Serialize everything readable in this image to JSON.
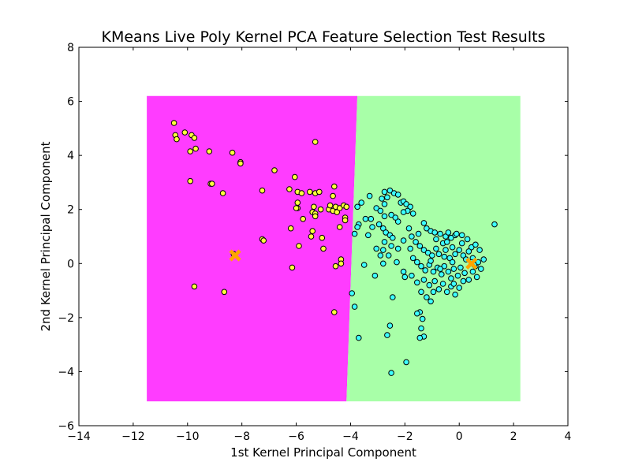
{
  "chart_data": {
    "type": "scatter",
    "title": "KMeans Live Poly Kernel PCA Feature Selection Test Results",
    "xlabel": "1st Kernel Principal Component",
    "ylabel": "2nd Kernel Principal Component",
    "xlim": [
      -14,
      4
    ],
    "ylim": [
      -6,
      8
    ],
    "xticks": [
      -14,
      -12,
      -10,
      -8,
      -6,
      -4,
      -2,
      0,
      2,
      4
    ],
    "yticks": [
      -6,
      -4,
      -2,
      0,
      2,
      4,
      6,
      8
    ],
    "xtick_labels": [
      "−14",
      "−12",
      "−10",
      "−8",
      "−6",
      "−4",
      "−2",
      "0",
      "2",
      "4"
    ],
    "ytick_labels": [
      "−6",
      "−4",
      "−2",
      "0",
      "2",
      "4",
      "6",
      "8"
    ],
    "grid": false,
    "legend": "none",
    "decision_regions": {
      "x_range": [
        -11.5,
        2.25
      ],
      "y_range": [
        -5.1,
        6.2
      ],
      "boundary": [
        [
          -3.75,
          6.2
        ],
        [
          -4.15,
          -5.1
        ]
      ],
      "left_color": "#ff3cff",
      "right_color": "#a8ffa8"
    },
    "series": [
      {
        "color": "#ffff3c",
        "points": [
          [
            -10.5,
            5.2
          ],
          [
            -10.45,
            4.75
          ],
          [
            -10.4,
            4.6
          ],
          [
            -10.1,
            4.85
          ],
          [
            -9.85,
            4.75
          ],
          [
            -9.75,
            4.65
          ],
          [
            -9.9,
            4.15
          ],
          [
            -9.7,
            4.25
          ],
          [
            -9.2,
            4.15
          ],
          [
            -8.35,
            4.1
          ],
          [
            -8.05,
            3.75
          ],
          [
            -8.05,
            3.7
          ],
          [
            -6.8,
            3.45
          ],
          [
            -9.9,
            3.05
          ],
          [
            -9.15,
            2.95
          ],
          [
            -9.1,
            2.95
          ],
          [
            -8.7,
            2.6
          ],
          [
            -7.25,
            2.7
          ],
          [
            -6.25,
            2.75
          ],
          [
            -6.05,
            3.2
          ],
          [
            -5.95,
            2.65
          ],
          [
            -5.8,
            2.6
          ],
          [
            -5.5,
            2.65
          ],
          [
            -5.3,
            2.6
          ],
          [
            -5.15,
            2.65
          ],
          [
            -4.6,
            2.85
          ],
          [
            -4.65,
            2.5
          ],
          [
            -5.3,
            4.5
          ],
          [
            -5.95,
            2.25
          ],
          [
            -5.95,
            2.05
          ],
          [
            -6.0,
            2.05
          ],
          [
            -5.35,
            2.1
          ],
          [
            -5.4,
            1.9
          ],
          [
            -5.3,
            1.85
          ],
          [
            -5.3,
            1.75
          ],
          [
            -5.1,
            2.0
          ],
          [
            -4.8,
            2.0
          ],
          [
            -4.75,
            2.15
          ],
          [
            -4.65,
            1.95
          ],
          [
            -4.55,
            2.1
          ],
          [
            -4.5,
            1.9
          ],
          [
            -4.4,
            2.05
          ],
          [
            -4.25,
            2.15
          ],
          [
            -4.15,
            2.1
          ],
          [
            -4.2,
            1.7
          ],
          [
            -4.2,
            1.6
          ],
          [
            -5.75,
            1.65
          ],
          [
            -4.4,
            1.35
          ],
          [
            -6.2,
            1.3
          ],
          [
            -5.4,
            1.2
          ],
          [
            -5.45,
            1.0
          ],
          [
            -5.05,
            0.95
          ],
          [
            -7.25,
            0.9
          ],
          [
            -7.2,
            0.85
          ],
          [
            -5.9,
            0.65
          ],
          [
            -5.0,
            0.55
          ],
          [
            -4.35,
            0.15
          ],
          [
            -4.35,
            0.0
          ],
          [
            -4.55,
            -0.1
          ],
          [
            -6.15,
            -0.15
          ],
          [
            -8.3,
            0.35
          ],
          [
            -9.75,
            -0.85
          ],
          [
            -8.65,
            -1.05
          ],
          [
            -4.6,
            -1.8
          ]
        ]
      },
      {
        "color": "#3cffff",
        "points": [
          [
            -3.6,
            2.25
          ],
          [
            -3.3,
            2.5
          ],
          [
            -2.75,
            2.65
          ],
          [
            -2.55,
            2.7
          ],
          [
            -2.4,
            2.6
          ],
          [
            -2.25,
            2.55
          ],
          [
            -2.65,
            2.45
          ],
          [
            -2.85,
            2.4
          ],
          [
            -2.75,
            2.2
          ],
          [
            -3.05,
            2.05
          ],
          [
            -2.9,
            1.95
          ],
          [
            -2.75,
            1.75
          ],
          [
            -2.5,
            1.8
          ],
          [
            -2.25,
            1.55
          ],
          [
            -2.15,
            2.25
          ],
          [
            -2.05,
            2.3
          ],
          [
            -1.95,
            2.2
          ],
          [
            -1.8,
            2.1
          ],
          [
            -1.9,
            1.95
          ],
          [
            -2.05,
            1.9
          ],
          [
            -1.7,
            1.85
          ],
          [
            -2.35,
            1.7
          ],
          [
            -3.75,
            2.1
          ],
          [
            -3.45,
            1.65
          ],
          [
            -3.7,
            1.45
          ],
          [
            -3.75,
            1.35
          ],
          [
            -3.25,
            1.65
          ],
          [
            -3.2,
            1.35
          ],
          [
            -3.85,
            1.1
          ],
          [
            -3.35,
            1.05
          ],
          [
            -2.95,
            1.45
          ],
          [
            -2.8,
            1.3
          ],
          [
            -2.7,
            1.15
          ],
          [
            -2.55,
            1.05
          ],
          [
            -2.45,
            0.95
          ],
          [
            -2.75,
            0.8
          ],
          [
            -2.5,
            0.65
          ],
          [
            -2.25,
            0.55
          ],
          [
            -2.8,
            0.5
          ],
          [
            -3.05,
            0.55
          ],
          [
            -2.6,
            0.3
          ],
          [
            -2.9,
            0.3
          ],
          [
            -2.8,
            0.0
          ],
          [
            -1.85,
            1.3
          ],
          [
            -1.75,
            1.0
          ],
          [
            -1.5,
            1.1
          ],
          [
            -1.3,
            1.5
          ],
          [
            -1.2,
            1.3
          ],
          [
            -1.05,
            1.2
          ],
          [
            -0.9,
            1.15
          ],
          [
            -0.7,
            1.1
          ],
          [
            -0.5,
            1.0
          ],
          [
            -0.4,
            1.15
          ],
          [
            -0.3,
            0.95
          ],
          [
            -0.15,
            1.05
          ],
          [
            -0.1,
            1.1
          ],
          [
            0.1,
            1.05
          ],
          [
            0.3,
            0.9
          ],
          [
            0.45,
            0.6
          ],
          [
            0.6,
            0.7
          ],
          [
            0.75,
            0.5
          ],
          [
            1.3,
            1.45
          ],
          [
            -1.6,
            0.8
          ],
          [
            -1.45,
            0.65
          ],
          [
            -1.3,
            0.5
          ],
          [
            -1.15,
            0.4
          ],
          [
            -1.0,
            0.3
          ],
          [
            -0.85,
            0.55
          ],
          [
            -0.75,
            0.35
          ],
          [
            -0.6,
            0.75
          ],
          [
            -0.5,
            0.5
          ],
          [
            -0.35,
            0.2
          ],
          [
            -0.25,
            0.6
          ],
          [
            -0.15,
            0.35
          ],
          [
            0.0,
            0.5
          ],
          [
            0.15,
            0.3
          ],
          [
            0.25,
            0.15
          ],
          [
            0.35,
            0.45
          ],
          [
            0.5,
            0.2
          ],
          [
            0.6,
            -0.1
          ],
          [
            0.7,
            0.05
          ],
          [
            0.8,
            -0.2
          ],
          [
            0.9,
            0.15
          ],
          [
            -1.7,
            0.2
          ],
          [
            -1.55,
            0.05
          ],
          [
            -1.4,
            -0.1
          ],
          [
            -1.25,
            -0.25
          ],
          [
            -1.1,
            -0.05
          ],
          [
            -0.95,
            -0.3
          ],
          [
            -0.8,
            -0.15
          ],
          [
            -0.65,
            -0.4
          ],
          [
            -0.55,
            -0.1
          ],
          [
            -0.4,
            -0.3
          ],
          [
            -0.3,
            -0.55
          ],
          [
            -0.2,
            -0.2
          ],
          [
            -0.05,
            -0.45
          ],
          [
            0.05,
            -0.15
          ],
          [
            0.2,
            -0.35
          ],
          [
            0.35,
            -0.6
          ],
          [
            0.5,
            -0.3
          ],
          [
            0.65,
            -0.5
          ],
          [
            -1.3,
            -0.6
          ],
          [
            -1.1,
            -0.8
          ],
          [
            -0.9,
            -0.65
          ],
          [
            -0.75,
            -0.95
          ],
          [
            -0.6,
            -0.75
          ],
          [
            -0.45,
            -1.05
          ],
          [
            -0.3,
            -0.85
          ],
          [
            -0.15,
            -1.15
          ],
          [
            0.0,
            -0.9
          ],
          [
            -1.75,
            -0.45
          ],
          [
            -2.05,
            -0.3
          ],
          [
            -2.3,
            0.05
          ],
          [
            -2.0,
            -0.5
          ],
          [
            -1.55,
            -0.7
          ],
          [
            -1.4,
            -1.05
          ],
          [
            -1.2,
            -1.25
          ],
          [
            -1.05,
            -1.4
          ],
          [
            -1.45,
            -1.8
          ],
          [
            -1.35,
            -2.05
          ],
          [
            -1.4,
            -2.4
          ],
          [
            -1.3,
            -2.7
          ],
          [
            -1.45,
            -2.75
          ],
          [
            -1.55,
            -1.85
          ],
          [
            -2.45,
            -1.25
          ],
          [
            -2.55,
            -2.3
          ],
          [
            -2.65,
            -2.65
          ],
          [
            -1.95,
            -3.65
          ],
          [
            -2.5,
            -4.05
          ],
          [
            -3.95,
            -1.1
          ],
          [
            -3.85,
            -1.6
          ],
          [
            -3.7,
            -2.75
          ],
          [
            -3.5,
            -0.05
          ],
          [
            -3.1,
            -0.45
          ],
          [
            -2.05,
            0.85
          ],
          [
            -1.8,
            0.55
          ],
          [
            -0.85,
            0.9
          ],
          [
            -0.45,
            0.8
          ],
          [
            0.1,
            0.75
          ],
          [
            0.15,
            -0.65
          ],
          [
            0.45,
            0.05
          ],
          [
            -0.25,
            0.05
          ],
          [
            -0.55,
            0.25
          ],
          [
            -1.05,
            0.1
          ],
          [
            -0.7,
            -0.2
          ],
          [
            -0.2,
            -0.75
          ],
          [
            -0.95,
            -1.05
          ],
          [
            0.55,
            -0.05
          ]
        ]
      }
    ],
    "centroids": {
      "color": "#ffa500",
      "marker": "x",
      "points": [
        [
          -8.25,
          0.3
        ],
        [
          0.45,
          0.0
        ]
      ]
    }
  }
}
